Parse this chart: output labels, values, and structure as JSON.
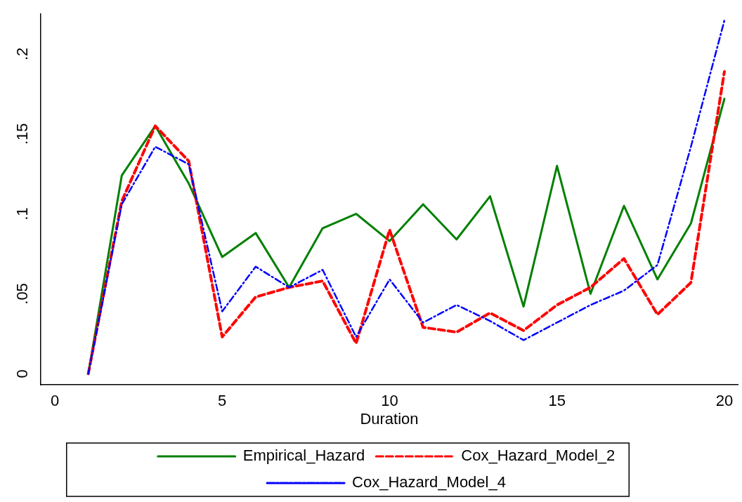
{
  "chart_data": {
    "type": "line",
    "xlabel": "Duration",
    "x": [
      1,
      2,
      3,
      4,
      5,
      6,
      7,
      8,
      9,
      10,
      11,
      12,
      13,
      14,
      15,
      16,
      17,
      18,
      19,
      20
    ],
    "series": [
      {
        "name": "Empirical_Hazard",
        "color": "#008000",
        "line_style": "solid",
        "values": [
          0,
          0.124,
          0.155,
          0.119,
          0.073,
          0.088,
          0.054,
          0.091,
          0.1,
          0.083,
          0.106,
          0.084,
          0.111,
          0.042,
          0.13,
          0.05,
          0.105,
          0.059,
          0.094,
          0.172
        ]
      },
      {
        "name": "Cox_Hazard_Model_2",
        "color": "#ff0000",
        "line_style": "dashed",
        "values": [
          0,
          0.108,
          0.155,
          0.133,
          0.023,
          0.048,
          0.054,
          0.058,
          0.019,
          0.09,
          0.029,
          0.026,
          0.038,
          0.027,
          0.043,
          0.054,
          0.072,
          0.037,
          0.057,
          0.189
        ]
      },
      {
        "name": "Cox_Hazard_Model_4",
        "color": "#0000ff",
        "line_style": "dashdot",
        "values": [
          0,
          0.106,
          0.142,
          0.131,
          0.039,
          0.067,
          0.054,
          0.065,
          0.023,
          0.059,
          0.032,
          0.043,
          0.033,
          0.021,
          0.032,
          0.043,
          0.052,
          0.068,
          0.142,
          0.221
        ]
      }
    ],
    "xlim": [
      -0.42,
      20.4
    ],
    "xticks": [
      0,
      5,
      10,
      15,
      20
    ],
    "ylim": [
      -0.007,
      0.225
    ],
    "yticks": [
      0,
      {
        "value": 0.05,
        "label": ".05"
      },
      {
        "value": 0.1,
        "label": ".1"
      },
      {
        "value": 0.15,
        "label": ".15"
      },
      {
        "value": 0.2,
        "label": ".2"
      }
    ],
    "grid": false,
    "legend": "bottom",
    "marker": "none"
  }
}
